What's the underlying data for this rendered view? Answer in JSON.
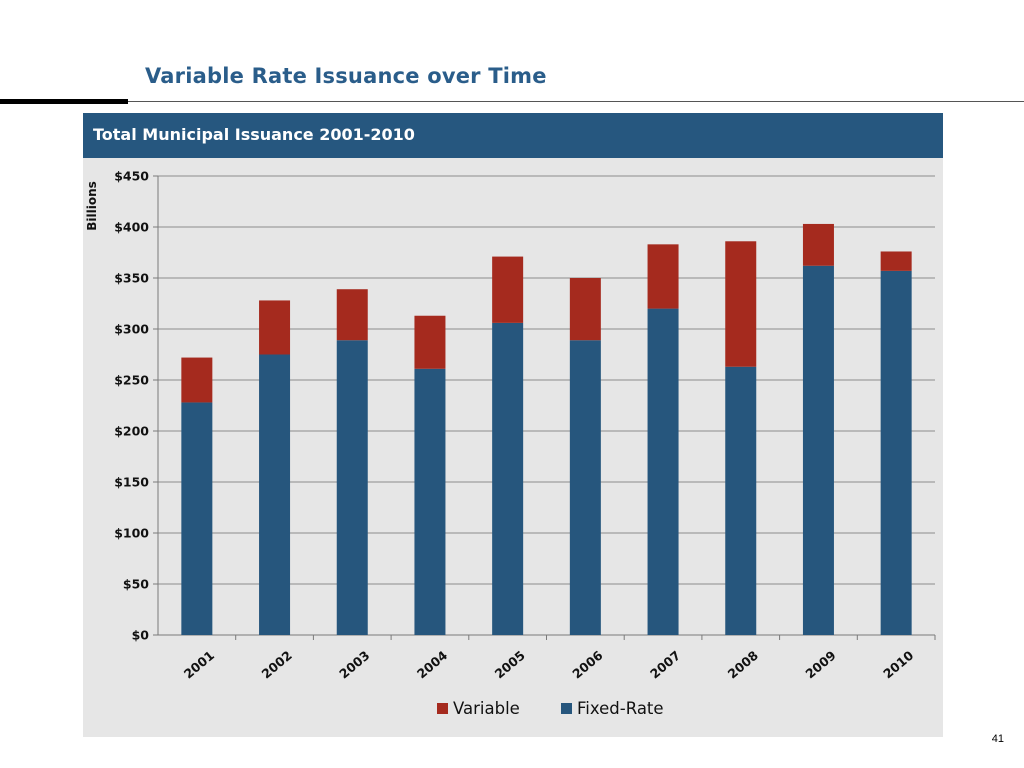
{
  "slide": {
    "title": "Variable Rate Issuance over Time",
    "page_number": "41"
  },
  "panel": {
    "header": "Total Municipal Issuance 2001-2010"
  },
  "colors": {
    "variable": "#a52a1e",
    "fixed_rate": "#26567d",
    "header_bar": "#26577f",
    "title": "#2a5d8a"
  },
  "chart_data": {
    "type": "bar",
    "stacked": true,
    "title": "Total Municipal Issuance 2001-2010",
    "xlabel": "",
    "ylabel": "Billions",
    "ylim": [
      0,
      450
    ],
    "y_ticks": [
      0,
      50,
      100,
      150,
      200,
      250,
      300,
      350,
      400,
      450
    ],
    "y_tick_labels": [
      "$0",
      "$50",
      "$100",
      "$150",
      "$200",
      "$250",
      "$300",
      "$350",
      "$400",
      "$450"
    ],
    "grid": true,
    "legend_position": "bottom",
    "categories": [
      "2001",
      "2002",
      "2003",
      "2004",
      "2005",
      "2006",
      "2007",
      "2008",
      "2009",
      "2010"
    ],
    "series": [
      {
        "name": "Fixed-Rate",
        "color": "#26567d",
        "values": [
          228,
          275,
          289,
          261,
          306,
          289,
          320,
          263,
          362,
          357
        ]
      },
      {
        "name": "Variable",
        "color": "#a52a1e",
        "values": [
          44,
          53,
          50,
          52,
          65,
          61,
          63,
          123,
          41,
          19
        ]
      }
    ],
    "legend": [
      "Variable",
      "Fixed-Rate"
    ]
  }
}
